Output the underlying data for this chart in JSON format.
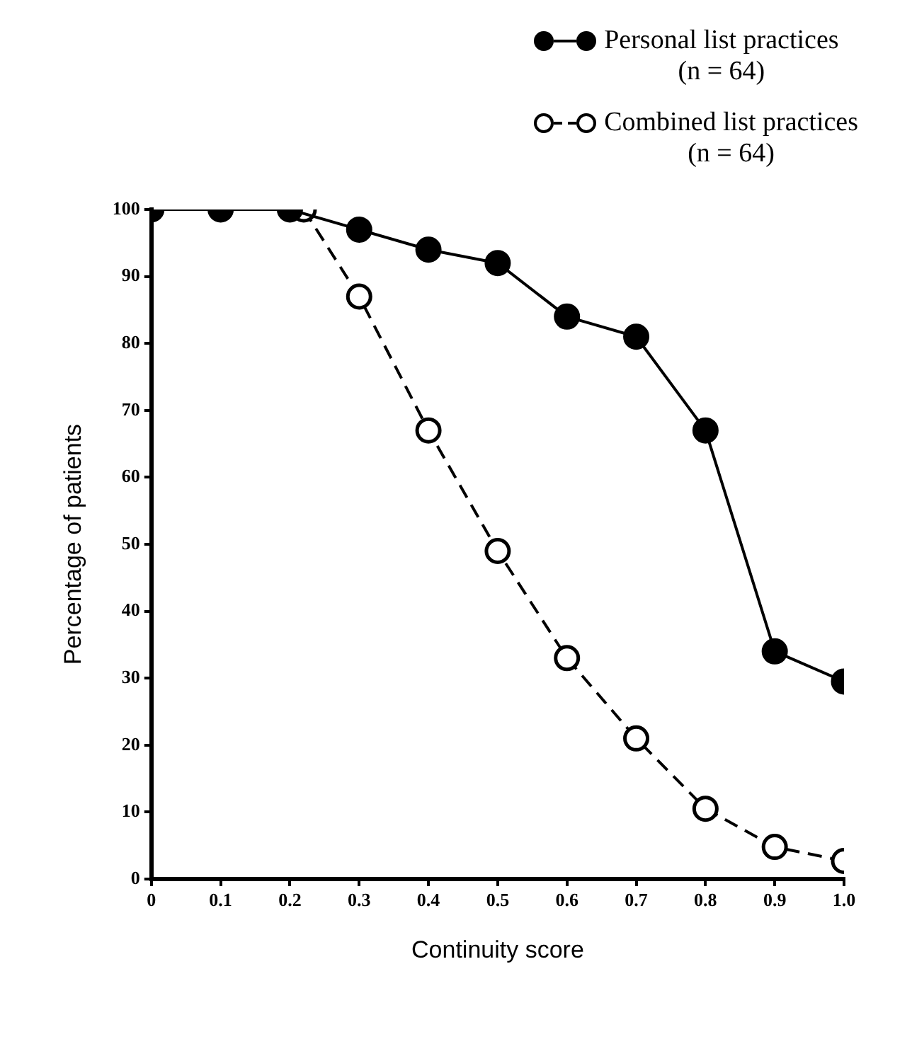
{
  "chart_data": {
    "type": "line",
    "xlabel": "Continuity score",
    "ylabel": "Percentage of patients",
    "xlim": [
      0,
      1.0
    ],
    "xticks": [
      0,
      0.1,
      0.2,
      0.3,
      0.4,
      0.5,
      0.6,
      0.7,
      0.8,
      0.9,
      {
        "value": 1.0,
        "label": "1.0"
      }
    ],
    "ylim": [
      0,
      100
    ],
    "yticks": [
      0,
      10,
      20,
      30,
      40,
      50,
      60,
      70,
      80,
      90,
      100
    ],
    "grid": false,
    "legend": "top right",
    "marker": "circle",
    "series": [
      {
        "name": "Personal list practices\n(n = 64)",
        "color": "#000000",
        "line_style": "solid",
        "x": [
          0,
          0.1,
          0.2,
          0.3,
          0.4,
          0.5,
          0.6,
          0.7,
          0.8,
          0.9,
          1.0
        ],
        "values": [
          100,
          100,
          100,
          97,
          94,
          92,
          84,
          81,
          67,
          34,
          29.5
        ]
      },
      {
        "name": "Combined list practices\n(n = 64)",
        "color": "#000000",
        "line_style": "dashed",
        "x": [
          0.22,
          0.3,
          0.4,
          0.5,
          0.6,
          0.7,
          0.8,
          0.9,
          1.0
        ],
        "values": [
          100,
          87,
          67,
          49,
          33,
          21,
          10.5,
          4.8,
          2.7
        ]
      }
    ]
  }
}
